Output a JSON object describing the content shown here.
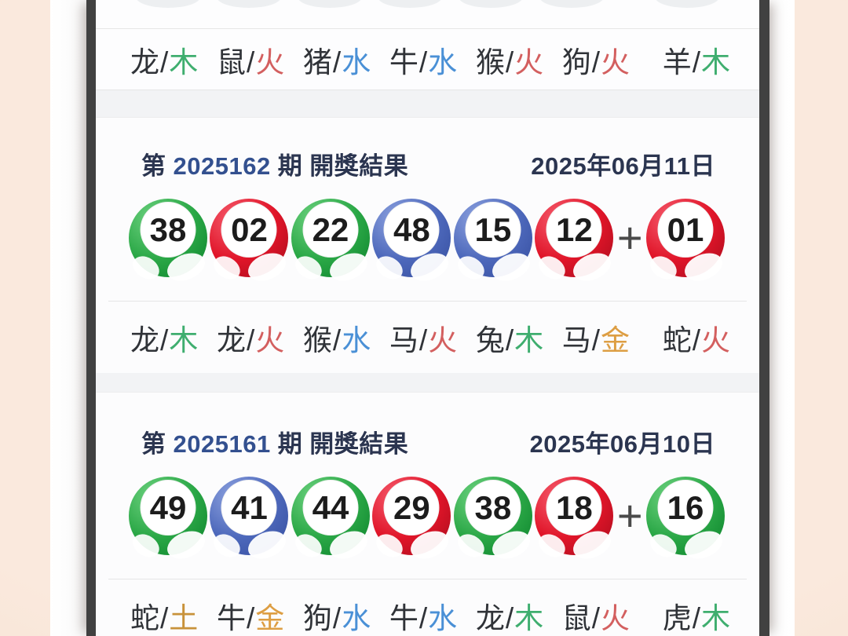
{
  "colors": {
    "frame_bg": "#f8e4d7",
    "bezel": "#414141",
    "screen_bg": "#f4f5f6",
    "card_bg": "#fcfcfd",
    "divider": "#e6e6e6",
    "title_navy": "#2b3550",
    "issue_blue": "#33508f",
    "ball_green": "#27a544",
    "ball_red": "#e0172b",
    "ball_blue": "#4d68bb",
    "element_wood": "#3fae6f",
    "element_fire": "#d35f5f",
    "element_water": "#4a90d6",
    "element_metal": "#dd9e43",
    "element_earth": "#c8923a",
    "zodiac_text": "#303338",
    "plus_gray": "#4a4a4a"
  },
  "top_row": {
    "items": [
      {
        "zodiac": "龙",
        "slash": "/",
        "element": "木",
        "type": "wood"
      },
      {
        "zodiac": "鼠",
        "slash": "/",
        "element": "火",
        "type": "fire"
      },
      {
        "zodiac": "猪",
        "slash": "/",
        "element": "水",
        "type": "water"
      },
      {
        "zodiac": "牛",
        "slash": "/",
        "element": "水",
        "type": "water"
      },
      {
        "zodiac": "猴",
        "slash": "/",
        "element": "火",
        "type": "fire"
      },
      {
        "zodiac": "狗",
        "slash": "/",
        "element": "火",
        "type": "fire"
      },
      {
        "zodiac": "羊",
        "slash": "/",
        "element": "木",
        "type": "wood"
      }
    ]
  },
  "sections": [
    {
      "title_prefix": "第",
      "issue": "2025162",
      "title_suffix": "期 開獎結果",
      "date": "2025年06月11日",
      "plus": "+",
      "balls": [
        {
          "num": "38",
          "color": "green"
        },
        {
          "num": "02",
          "color": "red"
        },
        {
          "num": "22",
          "color": "green"
        },
        {
          "num": "48",
          "color": "blue"
        },
        {
          "num": "15",
          "color": "blue"
        },
        {
          "num": "12",
          "color": "red"
        }
      ],
      "special": {
        "num": "01",
        "color": "red"
      },
      "zodiac_row": [
        {
          "zodiac": "龙",
          "slash": "/",
          "element": "木",
          "type": "wood"
        },
        {
          "zodiac": "龙",
          "slash": "/",
          "element": "火",
          "type": "fire"
        },
        {
          "zodiac": "猴",
          "slash": "/",
          "element": "水",
          "type": "water"
        },
        {
          "zodiac": "马",
          "slash": "/",
          "element": "火",
          "type": "fire"
        },
        {
          "zodiac": "兔",
          "slash": "/",
          "element": "木",
          "type": "wood"
        },
        {
          "zodiac": "马",
          "slash": "/",
          "element": "金",
          "type": "metal"
        },
        {
          "zodiac": "蛇",
          "slash": "/",
          "element": "火",
          "type": "fire"
        }
      ]
    },
    {
      "title_prefix": "第",
      "issue": "2025161",
      "title_suffix": "期 開獎結果",
      "date": "2025年06月10日",
      "plus": "+",
      "balls": [
        {
          "num": "49",
          "color": "green"
        },
        {
          "num": "41",
          "color": "blue"
        },
        {
          "num": "44",
          "color": "green"
        },
        {
          "num": "29",
          "color": "red"
        },
        {
          "num": "38",
          "color": "green"
        },
        {
          "num": "18",
          "color": "red"
        }
      ],
      "special": {
        "num": "16",
        "color": "green"
      },
      "zodiac_row": [
        {
          "zodiac": "蛇",
          "slash": "/",
          "element": "土",
          "type": "earth"
        },
        {
          "zodiac": "牛",
          "slash": "/",
          "element": "金",
          "type": "metal"
        },
        {
          "zodiac": "狗",
          "slash": "/",
          "element": "水",
          "type": "water"
        },
        {
          "zodiac": "牛",
          "slash": "/",
          "element": "水",
          "type": "water"
        },
        {
          "zodiac": "龙",
          "slash": "/",
          "element": "木",
          "type": "wood"
        },
        {
          "zodiac": "鼠",
          "slash": "/",
          "element": "火",
          "type": "fire"
        },
        {
          "zodiac": "虎",
          "slash": "/",
          "element": "木",
          "type": "wood"
        }
      ]
    }
  ]
}
